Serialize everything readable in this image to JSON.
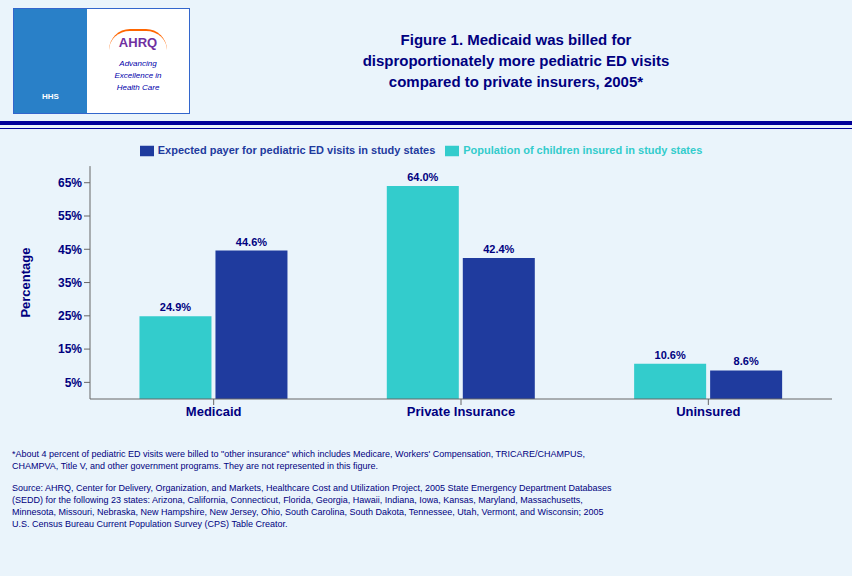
{
  "chart_data": {
    "type": "bar",
    "title": "Figure 1. Medicaid was billed for\ndisproportionately more pediatric ED visits\ncompared to private insurers, 2005*",
    "categories": [
      "Medicaid",
      "Private Insurance",
      "Uninsured"
    ],
    "series": [
      {
        "name": "Population of children insured in study states",
        "color": "#33CCCC",
        "values": [
          24.9,
          64.0,
          10.6
        ],
        "value_labels": [
          "24.9%",
          "64.0%",
          "10.6%"
        ]
      },
      {
        "name": "Expected payer for pediatric ED visits in study states",
        "color": "#1F3B9E",
        "values": [
          44.6,
          42.4,
          8.6
        ],
        "value_labels": [
          "44.6%",
          "42.4%",
          "8.6%"
        ]
      }
    ],
    "ylabel": "Percentage",
    "ylim": [
      0,
      70
    ],
    "yticks": [
      {
        "value": 5,
        "label": "5%"
      },
      {
        "value": 15,
        "label": "15%"
      },
      {
        "value": 25,
        "label": "25%"
      },
      {
        "value": 35,
        "label": "35%"
      },
      {
        "value": 45,
        "label": "45%"
      },
      {
        "value": 55,
        "label": "55%"
      },
      {
        "value": 65,
        "label": "65%"
      }
    ],
    "grid": false,
    "legend": "top",
    "data_labels": true,
    "annotations": [
      "HHS",
      "AHRQ",
      "Advancing",
      "Excellence in",
      "Health Care",
      "*About 4 percent of pediatric ED visits were billed to \"other insurance\" which includes Medicare, Workers' Compensation, TRICARE/CHAMPUS,\nCHAMPVA, Title V, and other government programs. They are not represented in this figure.",
      "Source: AHRQ, Center for Delivery, Organization, and Markets, Healthcare Cost and Utilization Project, 2005 State Emergency Department Databases\n(SEDD) for the following 23 states: Arizona, California, Connecticut, Florida, Georgia, Hawaii, Indiana, Iowa, Kansas, Maryland, Massachusetts,\nMinnesota, Missouri, Nebraska, New Hampshire, New Jersey, Ohio, South Carolina, South Dakota, Tennessee, Utah, Vermont, and Wisconsin; 2005\nU.S. Census Bureau Current Population Survey (CPS) Table Creator."
    ]
  }
}
